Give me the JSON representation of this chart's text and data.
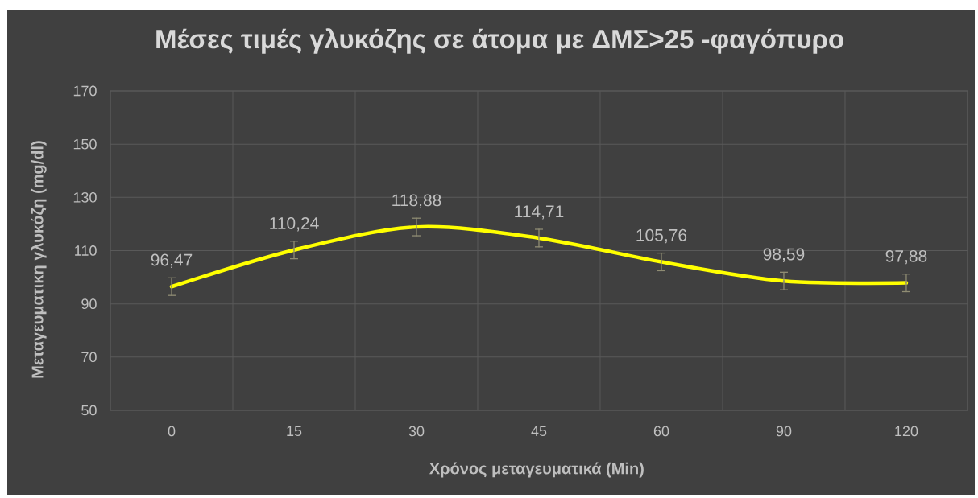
{
  "chart_data": {
    "type": "line",
    "title": "Μέσες τιμές γλυκόζης σε άτομα με ΔΜΣ>25 -φαγόπυρο",
    "xlabel": "Χρόνος μεταγευματικά (Min)",
    "ylabel": "Μεταγευματικη γλυκόζη (mg/dl)",
    "categories": [
      "0",
      "15",
      "30",
      "45",
      "60",
      "90",
      "120"
    ],
    "values": [
      96.47,
      110.24,
      118.88,
      114.71,
      105.76,
      98.59,
      97.88
    ],
    "errors": [
      3.3,
      3.3,
      3.3,
      3.3,
      3.3,
      3.3,
      3.3
    ],
    "value_labels": [
      "96,47",
      "110,24",
      "118,88",
      "114,71",
      "105,76",
      "98,59",
      "97,88"
    ],
    "color": "#ffff00",
    "ylim": [
      50,
      170
    ],
    "yticks": [
      50,
      70,
      90,
      110,
      130,
      150,
      170
    ],
    "grid": true,
    "marker": "none",
    "line_style": "solid"
  }
}
